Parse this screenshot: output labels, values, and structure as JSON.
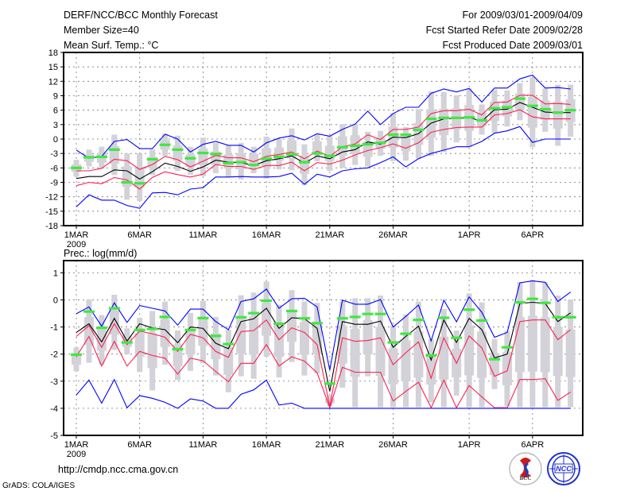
{
  "header": {
    "title": "DERF/NCC/BCC Monthly Forecast",
    "member_size": "Member Size=40",
    "variable": "Mean Surf. Temp.: °C",
    "period": "For 2009/03/01-2009/04/09",
    "started": "Fcst Started Refer Date 2009/02/28",
    "produced": "Fcst Produced Date 2009/03/01"
  },
  "footer": {
    "url": "http://cmdp.ncc.cma.gov.cn",
    "credit": "GrADS: COLA/IGES",
    "logo_bcc": "BCC",
    "logo_ncc": "NCC"
  },
  "colors": {
    "max_min": "#0000ff",
    "spread": "#ff1f4f",
    "mean": "#000000",
    "observed": "#40e840",
    "range": "#d2d2d8"
  },
  "chart_data": [
    {
      "type": "line",
      "title": "Mean Surf. Temp.: °C",
      "ylabel": "°C",
      "ylim": [
        -18,
        18
      ],
      "yticks": [
        -18,
        -15,
        -12,
        -9,
        -6,
        -3,
        0,
        3,
        6,
        9,
        12,
        15,
        18
      ],
      "xticks": [
        {
          "day": 0,
          "label": "1MAR"
        },
        {
          "day": 5,
          "label": "6MAR"
        },
        {
          "day": 10,
          "label": "11MAR"
        },
        {
          "day": 15,
          "label": "16MAR"
        },
        {
          "day": 20,
          "label": "21MAR"
        },
        {
          "day": 25,
          "label": "26MAR"
        },
        {
          "day": 31,
          "label": "1APR"
        },
        {
          "day": 36,
          "label": "6APR"
        }
      ],
      "year_label": "2009",
      "grid": true,
      "days": 40,
      "series": [
        {
          "name": "max",
          "color": "blue",
          "values": [
            -2.3,
            -4.0,
            -3.6,
            -0.5,
            -0.1,
            -2.0,
            -2.0,
            1.0,
            0.0,
            -2.7,
            -1.1,
            -0.5,
            -1.3,
            -1.3,
            -2.7,
            -0.8,
            0.2,
            0.7,
            -0.2,
            1.1,
            0.6,
            2.0,
            3.1,
            5.8,
            3.0,
            5.3,
            6.6,
            6.6,
            9.5,
            10.4,
            9.8,
            10.5,
            7.7,
            10.6,
            10.6,
            12.5,
            13.3,
            10.6,
            10.7,
            10.4
          ]
        },
        {
          "name": "upper",
          "color": "red",
          "values": [
            -6.6,
            -6.6,
            -6.1,
            -4.2,
            -4.5,
            -6.3,
            -5.3,
            -3.6,
            -4.3,
            -5.8,
            -4.6,
            -3.4,
            -3.9,
            -3.9,
            -4.7,
            -3.6,
            -3.2,
            -2.7,
            -4.1,
            -2.5,
            -3.6,
            -1.6,
            -1.0,
            0.9,
            -0.1,
            2.0,
            2.0,
            2.5,
            5.3,
            5.9,
            5.9,
            6.2,
            5.0,
            7.6,
            7.7,
            9.1,
            9.1,
            7.3,
            7.4,
            7.2
          ]
        },
        {
          "name": "mean",
          "color": "black",
          "values": [
            -8.2,
            -7.8,
            -7.8,
            -6.4,
            -6.6,
            -8.3,
            -6.8,
            -5.0,
            -5.7,
            -6.7,
            -5.8,
            -4.4,
            -4.8,
            -4.9,
            -5.5,
            -4.5,
            -4.1,
            -3.5,
            -5.0,
            -3.5,
            -4.1,
            -2.7,
            -2.2,
            -0.6,
            -1.1,
            0.4,
            0.3,
            1.1,
            3.3,
            4.2,
            4.3,
            4.5,
            3.7,
            6.1,
            6.2,
            7.6,
            6.6,
            5.6,
            5.5,
            5.5
          ]
        },
        {
          "name": "lower",
          "color": "red",
          "values": [
            -9.7,
            -9.0,
            -9.3,
            -8.0,
            -8.5,
            -10.4,
            -8.0,
            -6.8,
            -7.4,
            -7.9,
            -7.3,
            -5.3,
            -5.7,
            -5.7,
            -6.3,
            -5.5,
            -5.5,
            -4.8,
            -6.6,
            -4.9,
            -5.2,
            -4.4,
            -3.3,
            -2.4,
            -1.8,
            -1.0,
            -1.9,
            -0.8,
            1.4,
            2.0,
            2.4,
            2.5,
            2.5,
            5.0,
            5.3,
            6.1,
            4.6,
            4.2,
            4.2,
            4.2
          ]
        },
        {
          "name": "min",
          "color": "blue",
          "values": [
            -14.1,
            -11.6,
            -12.7,
            -12.7,
            -13.8,
            -14.4,
            -11.2,
            -11.1,
            -11.6,
            -10.4,
            -10.1,
            -7.9,
            -7.9,
            -7.8,
            -7.9,
            -7.9,
            -7.8,
            -7.1,
            -9.4,
            -7.3,
            -7.9,
            -6.6,
            -6.2,
            -6.0,
            -4.9,
            -3.7,
            -5.8,
            -4.1,
            -3.0,
            -2.3,
            -1.6,
            -1.6,
            -0.5,
            1.2,
            1.7,
            2.6,
            -0.7,
            0.0,
            0.0,
            0.0
          ]
        }
      ],
      "observed": [
        -6.0,
        -3.8,
        -3.7,
        -2.2,
        -9.0,
        -9.2,
        -4.2,
        -1.2,
        -2.2,
        -4.0,
        -2.9,
        -3.1,
        -5.0,
        -4.8,
        -5.4,
        -4.1,
        -3.7,
        -3.2,
        -4.8,
        -3.0,
        -3.5,
        -1.7,
        -1.4,
        -1.1,
        -0.8,
        0.9,
        0.9,
        1.9,
        4.2,
        4.4,
        4.4,
        4.5,
        3.9,
        6.4,
        6.6,
        8.4,
        6.9,
        6.2,
        5.5,
        6.0
      ],
      "range_hi": [
        -4.3,
        -2.2,
        -1.6,
        0.9,
        -3.0,
        -3.0,
        -2.2,
        1.1,
        0.7,
        -1.6,
        0.3,
        -0.8,
        -1.3,
        -0.8,
        -1.6,
        0.5,
        0.0,
        2.2,
        -1.1,
        1.1,
        0.6,
        3.1,
        3.2,
        1.5,
        1.7,
        5.4,
        2.5,
        6.2,
        9.9,
        9.8,
        9.1,
        10.5,
        7.2,
        10.3,
        10.1,
        11.6,
        12.8,
        10.5,
        11.3,
        11.3
      ],
      "range_lo": [
        -7.8,
        -5.7,
        -6.2,
        -7.5,
        -12.6,
        -12.9,
        -7.5,
        -3.5,
        -6.6,
        -7.4,
        -7.7,
        -7.1,
        -8.0,
        -8.4,
        -7.1,
        -8.2,
        -6.3,
        -6.5,
        -9.6,
        -4.6,
        -6.6,
        -6.0,
        -5.4,
        -5.7,
        -3.5,
        -4.6,
        -4.5,
        -4.1,
        -3.5,
        -2.7,
        -0.7,
        -1.7,
        0.9,
        1.2,
        2.6,
        3.9,
        -1.7,
        1.5,
        -1.4,
        0.5
      ]
    },
    {
      "type": "line",
      "title": "Prec.: log(mm/d)",
      "ylabel": "log(mm/d)",
      "ylim": [
        -5,
        1.45
      ],
      "yticks": [
        -5,
        -4,
        -3,
        -2,
        -1,
        0,
        1
      ],
      "xticks": [
        {
          "day": 0,
          "label": "1MAR"
        },
        {
          "day": 5,
          "label": "6MAR"
        },
        {
          "day": 10,
          "label": "11MAR"
        },
        {
          "day": 15,
          "label": "16MAR"
        },
        {
          "day": 20,
          "label": "21MAR"
        },
        {
          "day": 25,
          "label": "26MAR"
        },
        {
          "day": 31,
          "label": "1APR"
        },
        {
          "day": 36,
          "label": "6APR"
        }
      ],
      "year_label": "2009",
      "grid": true,
      "days": 40,
      "series": [
        {
          "name": "max",
          "color": "blue",
          "values": [
            -0.51,
            -0.26,
            -0.97,
            -0.11,
            -0.83,
            -0.21,
            -0.31,
            -0.41,
            -0.93,
            -0.34,
            -0.34,
            -0.8,
            -1.1,
            -0.06,
            0.04,
            0.4,
            -0.31,
            0.04,
            0.06,
            -0.26,
            -2.59,
            -0.01,
            -0.16,
            -0.16,
            0.01,
            -1.0,
            -0.61,
            -0.19,
            -1.51,
            -0.01,
            -0.81,
            0.11,
            -0.46,
            -1.38,
            -1.2,
            0.63,
            0.7,
            0.65,
            -0.06,
            0.29
          ]
        },
        {
          "name": "upper",
          "color": "red",
          "values": [
            -1.35,
            -0.95,
            -1.75,
            -0.88,
            -1.65,
            -1.15,
            -1.25,
            -1.38,
            -1.9,
            -1.27,
            -1.4,
            -1.9,
            -2.12,
            -1.17,
            -1.13,
            -0.74,
            -1.47,
            -1.03,
            -1.2,
            -1.65,
            -3.93,
            -1.4,
            -1.53,
            -1.5,
            -1.4,
            -2.39,
            -1.95,
            -1.55,
            -2.89,
            -1.4,
            -2.34,
            -1.33,
            -1.77,
            -2.82,
            -2.62,
            -0.8,
            -0.74,
            -0.74,
            -1.47,
            -1.1
          ]
        },
        {
          "name": "mean",
          "color": "black",
          "values": [
            -1.2,
            -0.88,
            -1.55,
            -0.68,
            -1.52,
            -0.88,
            -1.03,
            -1.1,
            -1.58,
            -1.0,
            -1.05,
            -1.6,
            -1.8,
            -0.8,
            -0.7,
            -0.31,
            -1.05,
            -0.66,
            -0.69,
            -1.05,
            -3.38,
            -0.8,
            -0.9,
            -0.9,
            -0.78,
            -1.75,
            -1.35,
            -0.97,
            -2.22,
            -0.74,
            -1.57,
            -0.68,
            -1.1,
            -2.14,
            -2.0,
            -0.13,
            -0.09,
            -0.13,
            -0.8,
            -0.48
          ]
        },
        {
          "name": "lower",
          "color": "red",
          "values": [
            -2.1,
            -1.35,
            -2.44,
            -1.53,
            -2.44,
            -1.9,
            -2.05,
            -2.15,
            -2.74,
            -2.15,
            -2.25,
            -2.64,
            -3.02,
            -2.34,
            -2.34,
            -1.65,
            -2.44,
            -2.1,
            -2.26,
            -2.69,
            -3.98,
            -2.49,
            -2.67,
            -2.67,
            -2.67,
            -3.73,
            -3.38,
            -3.04,
            -3.98,
            -2.96,
            -3.98,
            -3.16,
            -3.58,
            -3.98,
            -3.98,
            -2.94,
            -2.94,
            -2.91,
            -3.71,
            -3.4
          ]
        },
        {
          "name": "min",
          "color": "blue",
          "values": [
            -3.51,
            -2.96,
            -3.81,
            -2.94,
            -3.98,
            -3.53,
            -3.63,
            -3.78,
            -4.0,
            -3.65,
            -3.73,
            -4.0,
            -4.0,
            -3.48,
            -3.32,
            -2.96,
            -3.88,
            -3.81,
            -4.0,
            -4.0,
            -4.0,
            -4.0,
            -4.0,
            -4.0,
            -4.0,
            -4.0,
            -4.0,
            -4.0,
            -4.0,
            -4.0,
            -4.0,
            -4.0,
            -4.0,
            -4.0,
            -4.0,
            -4.0,
            -4.0,
            -4.0,
            -4.0,
            -4.0
          ]
        }
      ],
      "observed": [
        -2.02,
        -0.43,
        -1.03,
        -0.31,
        -1.57,
        -1.11,
        -1.07,
        -0.63,
        -1.82,
        -1.11,
        -0.67,
        -1.33,
        -1.63,
        -0.64,
        -0.49,
        -0.03,
        -0.88,
        -0.41,
        -0.68,
        -0.86,
        -3.09,
        -0.68,
        -0.63,
        -0.52,
        -0.52,
        -1.57,
        -1.25,
        -0.74,
        -2.05,
        -0.66,
        -1.4,
        -0.36,
        -0.76,
        -2.19,
        -1.75,
        -0.09,
        0.04,
        -0.11,
        -0.64,
        -0.64
      ],
      "range_hi": [
        -1.75,
        0.02,
        -0.56,
        0.19,
        -1.05,
        -0.66,
        -0.41,
        -0.06,
        -1.13,
        -0.48,
        -0.03,
        -0.63,
        -1.1,
        0.17,
        0.27,
        0.68,
        -0.18,
        0.36,
        -0.06,
        -0.11,
        -3.53,
        -0.06,
        0.06,
        0.06,
        0.16,
        -0.95,
        -0.54,
        -0.06,
        -1.45,
        -0.34,
        -1.13,
        0.24,
        -0.09,
        -1.45,
        -1.15,
        0.66,
        0.73,
        0.65,
        0.16,
        0.01
      ],
      "range_lo": [
        -2.64,
        -2.32,
        -2.39,
        -1.85,
        -2.0,
        -2.66,
        -3.34,
        -2.39,
        -2.96,
        -2.62,
        -2.34,
        -2.79,
        -3.41,
        -2.82,
        -2.91,
        -2.1,
        -2.86,
        -2.29,
        -2.79,
        -2.71,
        -3.93,
        -3.24,
        -3.96,
        -2.82,
        -3.96,
        -3.96,
        -3.96,
        -3.96,
        -3.78,
        -3.96,
        -3.53,
        -3.96,
        -3.96,
        -3.29,
        -3.93,
        -3.96,
        -3.96,
        -3.96,
        -3.96,
        -3.96
      ]
    }
  ]
}
